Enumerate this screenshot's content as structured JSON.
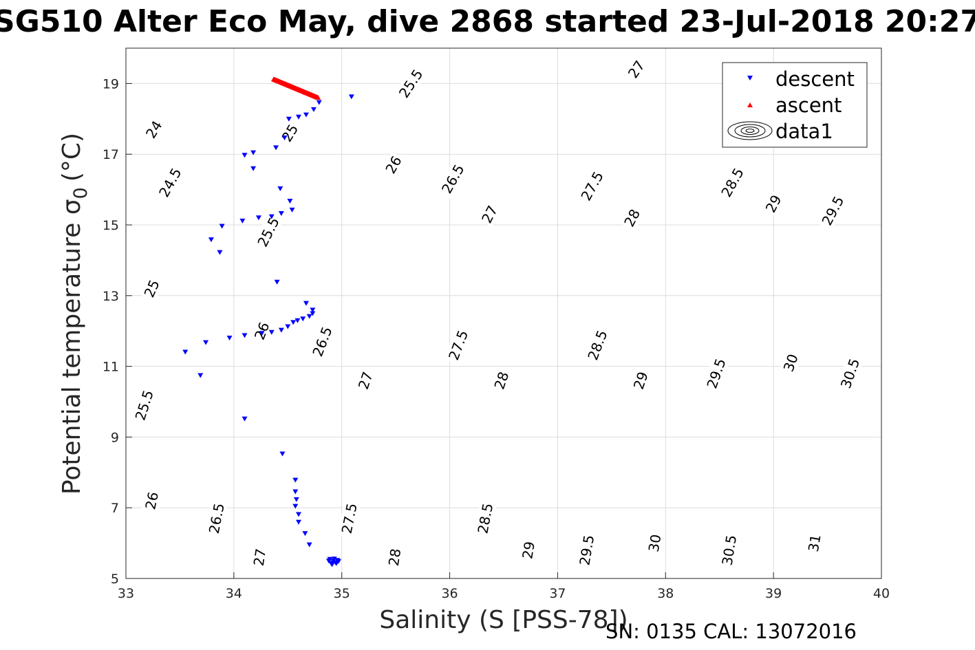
{
  "title": "SG510 Alter Eco May, dive 2868 started 23-Jul-2018 20:27",
  "footer": "SN: 0135  CAL: 13072016",
  "chart_data": {
    "type": "scatter",
    "xlabel": "Salinity (S [PSS-78])",
    "ylabel_main": "Potential temperature σ",
    "ylabel_sub": "0",
    "ylabel_unit": "(°C)",
    "xlim": [
      33,
      40
    ],
    "ylim": [
      5,
      20
    ],
    "xticks": [
      33,
      34,
      35,
      36,
      37,
      38,
      39,
      40
    ],
    "yticks": [
      5,
      7,
      9,
      11,
      13,
      15,
      17,
      19
    ],
    "grid": true,
    "legend_position": "top-right",
    "legend": [
      "descent",
      "ascent",
      "data1"
    ],
    "contour_levels": [
      "24",
      "24.5",
      "25",
      "25.5",
      "26",
      "26.5",
      "27",
      "27.5",
      "28",
      "28.5",
      "29",
      "29.5",
      "30",
      "30.5",
      "31"
    ],
    "contour_labels": [
      {
        "text": "24",
        "x": 33.26,
        "y": 17.7
      },
      {
        "text": "24.5",
        "x": 33.41,
        "y": 16.2
      },
      {
        "text": "25",
        "x": 34.52,
        "y": 17.6
      },
      {
        "text": "25",
        "x": 33.24,
        "y": 13.2
      },
      {
        "text": "25.5",
        "x": 35.64,
        "y": 19.0
      },
      {
        "text": "25.5",
        "x": 34.32,
        "y": 14.8
      },
      {
        "text": "25.5",
        "x": 33.17,
        "y": 9.9
      },
      {
        "text": "26",
        "x": 35.48,
        "y": 16.7
      },
      {
        "text": "26",
        "x": 34.26,
        "y": 12.0
      },
      {
        "text": "26",
        "x": 33.24,
        "y": 7.2
      },
      {
        "text": "26.5",
        "x": 36.03,
        "y": 16.3
      },
      {
        "text": "26.5",
        "x": 34.82,
        "y": 11.7
      },
      {
        "text": "26.5",
        "x": 33.84,
        "y": 6.7
      },
      {
        "text": "27",
        "x": 37.73,
        "y": 19.4
      },
      {
        "text": "27",
        "x": 36.37,
        "y": 15.3
      },
      {
        "text": "27",
        "x": 35.22,
        "y": 10.6
      },
      {
        "text": "27",
        "x": 34.24,
        "y": 5.6
      },
      {
        "text": "27.5",
        "x": 37.32,
        "y": 16.1
      },
      {
        "text": "27.5",
        "x": 36.08,
        "y": 11.6
      },
      {
        "text": "27.5",
        "x": 35.07,
        "y": 6.7
      },
      {
        "text": "28",
        "x": 37.69,
        "y": 15.2
      },
      {
        "text": "28",
        "x": 36.48,
        "y": 10.6
      },
      {
        "text": "28",
        "x": 35.49,
        "y": 5.6
      },
      {
        "text": "28.5",
        "x": 38.62,
        "y": 16.2
      },
      {
        "text": "28.5",
        "x": 37.37,
        "y": 11.6
      },
      {
        "text": "28.5",
        "x": 36.33,
        "y": 6.7
      },
      {
        "text": "29",
        "x": 39.0,
        "y": 15.6
      },
      {
        "text": "29",
        "x": 37.77,
        "y": 10.6
      },
      {
        "text": "29",
        "x": 36.73,
        "y": 5.8
      },
      {
        "text": "29.5",
        "x": 39.55,
        "y": 15.4
      },
      {
        "text": "29.5",
        "x": 38.47,
        "y": 10.8
      },
      {
        "text": "29.5",
        "x": 37.27,
        "y": 5.8
      },
      {
        "text": "30",
        "x": 39.16,
        "y": 11.1
      },
      {
        "text": "30",
        "x": 37.9,
        "y": 6.0
      },
      {
        "text": "30.5",
        "x": 39.71,
        "y": 10.8
      },
      {
        "text": "30.5",
        "x": 38.59,
        "y": 5.8
      },
      {
        "text": "31",
        "x": 39.38,
        "y": 6.0
      }
    ],
    "series": [
      {
        "name": "descent",
        "marker": "triangle-down",
        "color": "#0000ff",
        "points": [
          [
            35.09,
            18.63
          ],
          [
            34.79,
            18.47
          ],
          [
            34.74,
            18.27
          ],
          [
            34.67,
            18.12
          ],
          [
            34.6,
            18.06
          ],
          [
            34.51,
            18.0
          ],
          [
            34.47,
            17.47
          ],
          [
            34.39,
            17.19
          ],
          [
            34.18,
            17.05
          ],
          [
            34.1,
            16.98
          ],
          [
            34.18,
            16.6
          ],
          [
            34.43,
            16.03
          ],
          [
            34.52,
            15.68
          ],
          [
            34.54,
            15.43
          ],
          [
            34.44,
            15.33
          ],
          [
            34.35,
            15.24
          ],
          [
            34.23,
            15.21
          ],
          [
            34.08,
            15.12
          ],
          [
            33.89,
            14.97
          ],
          [
            33.79,
            14.59
          ],
          [
            33.87,
            14.23
          ],
          [
            34.4,
            13.39
          ],
          [
            34.67,
            12.79
          ],
          [
            34.73,
            12.6
          ],
          [
            34.73,
            12.5
          ],
          [
            34.7,
            12.42
          ],
          [
            34.64,
            12.35
          ],
          [
            34.59,
            12.3
          ],
          [
            34.55,
            12.25
          ],
          [
            34.5,
            12.13
          ],
          [
            34.44,
            12.03
          ],
          [
            34.35,
            11.97
          ],
          [
            34.26,
            11.94
          ],
          [
            34.1,
            11.88
          ],
          [
            33.96,
            11.81
          ],
          [
            33.74,
            11.68
          ],
          [
            33.55,
            11.41
          ],
          [
            33.69,
            10.75
          ],
          [
            34.1,
            9.52
          ],
          [
            34.45,
            8.53
          ],
          [
            34.57,
            7.79
          ],
          [
            34.57,
            7.46
          ],
          [
            34.58,
            7.24
          ],
          [
            34.57,
            7.05
          ],
          [
            34.6,
            6.82
          ],
          [
            34.6,
            6.6
          ],
          [
            34.66,
            6.28
          ],
          [
            34.7,
            5.96
          ],
          [
            34.88,
            5.5
          ],
          [
            34.9,
            5.44
          ],
          [
            34.92,
            5.5
          ],
          [
            34.94,
            5.46
          ],
          [
            34.96,
            5.52
          ],
          [
            34.89,
            5.55
          ],
          [
            34.91,
            5.4
          ],
          [
            34.95,
            5.43
          ],
          [
            34.93,
            5.56
          ],
          [
            34.97,
            5.49
          ]
        ]
      },
      {
        "name": "ascent",
        "marker": "triangle-up",
        "color": "#ff0000",
        "from": [
          34.37,
          19.12
        ],
        "to": [
          34.78,
          18.6
        ]
      },
      {
        "name": "data1",
        "marker": "contour",
        "color": "#000000"
      }
    ]
  }
}
